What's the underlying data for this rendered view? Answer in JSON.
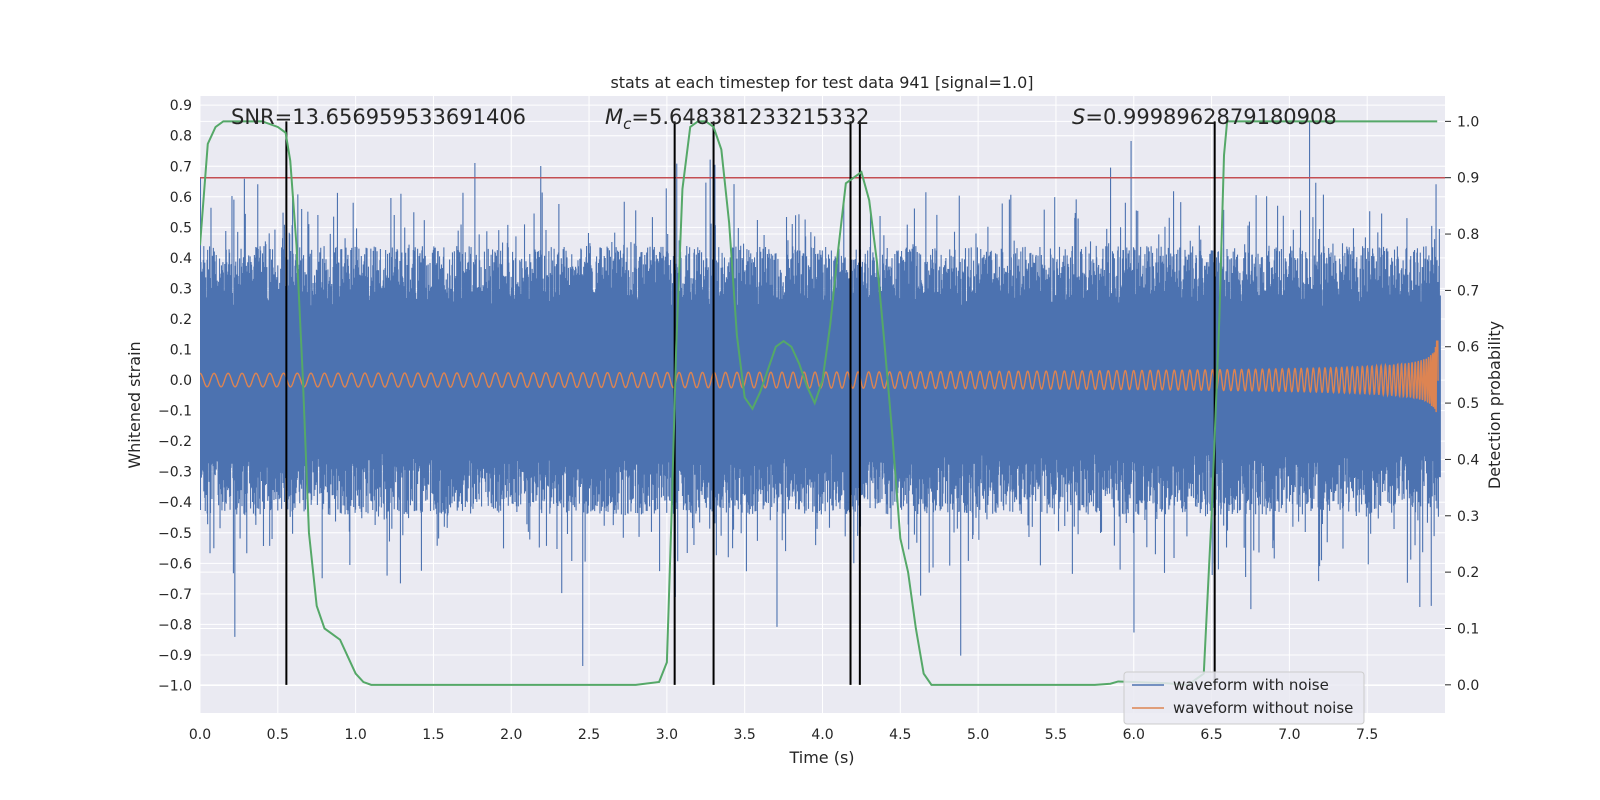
{
  "chart_data": {
    "type": "line",
    "title": "stats at each timestep for test data 941 [signal=1.0]",
    "xlabel": "Time (s)",
    "ylabel": "Whitened strain",
    "y2label": "Detection probability",
    "xlim": [
      0.0,
      8.0
    ],
    "ylim": [
      -1.09,
      0.93
    ],
    "y2lim": [
      -0.05,
      1.045
    ],
    "xticks": [
      "0.0",
      "0.5",
      "1.0",
      "1.5",
      "2.0",
      "2.5",
      "3.0",
      "3.5",
      "4.0",
      "4.5",
      "5.0",
      "5.5",
      "6.0",
      "6.5",
      "7.0",
      "7.5"
    ],
    "yticks": [
      "0.9",
      "0.8",
      "0.7",
      "0.6",
      "0.5",
      "0.4",
      "0.3",
      "0.2",
      "0.1",
      "0.0",
      "−0.1",
      "−0.2",
      "−0.3",
      "−0.4",
      "−0.5",
      "−0.6",
      "−0.7",
      "−0.8",
      "−0.9",
      "−1.0"
    ],
    "y2ticks": [
      "1.0",
      "0.9",
      "0.8",
      "0.7",
      "0.6",
      "0.5",
      "0.4",
      "0.3",
      "0.2",
      "0.1",
      "0.0"
    ],
    "annotations": {
      "snr": "SNR=13.656959533691406",
      "mc_symbol": "M",
      "mc_sub": "c",
      "mc_value": "=5.648381233215332",
      "s_symbol": "S",
      "s_value": "=0.9998962879180908"
    },
    "legend": {
      "position": "lower-right",
      "entries": [
        {
          "label": "waveform with noise",
          "color": "#4c72b0"
        },
        {
          "label": "waveform without noise",
          "color": "#dd8452"
        }
      ]
    },
    "colors": {
      "noise": "#4c72b0",
      "clean": "#dd8452",
      "probability": "#55a868",
      "threshold": "#c44e52",
      "event_line": "#000000",
      "plot_bg": "#eaeaf2",
      "grid": "#ffffff"
    },
    "threshold_probability": 0.9,
    "event_times": [
      0.555,
      3.05,
      3.3,
      4.18,
      4.24,
      6.52
    ],
    "probability_series": {
      "name": "Detection probability",
      "x": [
        0.0,
        0.05,
        0.1,
        0.15,
        0.2,
        0.3,
        0.4,
        0.5,
        0.55,
        0.58,
        0.62,
        0.66,
        0.7,
        0.75,
        0.8,
        0.85,
        0.9,
        0.95,
        1.0,
        1.05,
        1.1,
        1.15,
        1.2,
        1.5,
        2.0,
        2.5,
        2.8,
        2.95,
        3.0,
        3.03,
        3.06,
        3.1,
        3.15,
        3.2,
        3.25,
        3.3,
        3.35,
        3.4,
        3.45,
        3.5,
        3.55,
        3.6,
        3.65,
        3.7,
        3.75,
        3.8,
        3.85,
        3.9,
        3.95,
        4.0,
        4.05,
        4.1,
        4.15,
        4.2,
        4.25,
        4.3,
        4.35,
        4.4,
        4.45,
        4.5,
        4.55,
        4.6,
        4.65,
        4.7,
        4.8,
        5.0,
        5.5,
        5.75,
        5.85,
        5.9,
        6.0,
        6.2,
        6.35,
        6.45,
        6.5,
        6.55,
        6.58,
        6.6,
        7.0,
        7.5,
        7.95
      ],
      "y": [
        0.78,
        0.96,
        0.99,
        1.0,
        1.0,
        1.0,
        1.0,
        0.99,
        0.98,
        0.93,
        0.78,
        0.55,
        0.27,
        0.14,
        0.1,
        0.09,
        0.08,
        0.05,
        0.02,
        0.005,
        0.0,
        0.0,
        0.0,
        0.0,
        0.0,
        0.0,
        0.0,
        0.005,
        0.04,
        0.3,
        0.6,
        0.88,
        0.99,
        1.0,
        1.0,
        0.99,
        0.95,
        0.82,
        0.62,
        0.51,
        0.49,
        0.52,
        0.56,
        0.6,
        0.61,
        0.6,
        0.57,
        0.53,
        0.5,
        0.54,
        0.64,
        0.77,
        0.89,
        0.9,
        0.91,
        0.86,
        0.75,
        0.6,
        0.44,
        0.26,
        0.2,
        0.1,
        0.02,
        0.0,
        0.0,
        0.0,
        0.0,
        0.0,
        0.002,
        0.006,
        0.005,
        0.003,
        0.0,
        0.02,
        0.3,
        0.65,
        0.94,
        1.0,
        1.0,
        1.0,
        1.0
      ]
    }
  }
}
